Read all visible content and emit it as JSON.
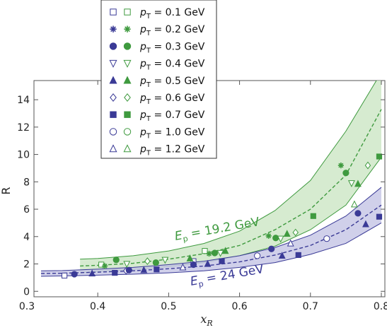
{
  "chart_data": {
    "type": "scatter",
    "xlabel": "x_R",
    "ylabel": "R",
    "xlim": [
      0.31,
      0.805
    ],
    "ylim": [
      -0.4,
      15.4
    ],
    "x_ticks": [
      0.3,
      0.4,
      0.5,
      0.6,
      0.7,
      0.8
    ],
    "y_ticks": [
      0,
      2,
      4,
      6,
      8,
      10,
      12,
      14
    ],
    "x_tick_labels": [
      "0.3",
      "0.4",
      "0.5",
      "0.6",
      "0.7",
      "0.8"
    ],
    "y_tick_labels": [
      "0",
      "2",
      "4",
      "6",
      "8",
      "10",
      "12",
      "14"
    ],
    "legend": {
      "placement": "top-left, outside plot",
      "entries": [
        {
          "label": "p_T = 0.1 GeV",
          "marker": "square-open"
        },
        {
          "label": "p_T = 0.2 GeV",
          "marker": "star"
        },
        {
          "label": "p_T = 0.3 GeV",
          "marker": "circle-filled"
        },
        {
          "label": "p_T = 0.4 GeV",
          "marker": "triangle-down-open"
        },
        {
          "label": "p_T = 0.5 GeV",
          "marker": "triangle-up-filled"
        },
        {
          "label": "p_T = 0.6 GeV",
          "marker": "diamond-open"
        },
        {
          "label": "p_T = 0.7 GeV",
          "marker": "square-filled"
        },
        {
          "label": "p_T = 1.0 GeV",
          "marker": "circle-open"
        },
        {
          "label": "p_T = 1.2 GeV",
          "marker": "triangle-up-open"
        }
      ]
    },
    "band_labels": {
      "green": {
        "prefix": "E",
        "sub": "p",
        "rest": " = 19.2 GeV",
        "color": "#3f9a3f"
      },
      "blue": {
        "prefix": "E",
        "sub": "p",
        "rest": " = 24 GeV",
        "color": "#3a3a96"
      }
    },
    "colors": {
      "green": "#3f9a3f",
      "green_band": "#cfe8c8",
      "blue": "#3a3a96",
      "blue_band": "#c8c8e6"
    },
    "bands": [
      {
        "color": "green",
        "x": [
          0.375,
          0.4,
          0.45,
          0.5,
          0.55,
          0.6,
          0.65,
          0.7,
          0.75,
          0.8
        ],
        "center": [
          1.85,
          1.9,
          2.05,
          2.35,
          2.75,
          3.35,
          4.5,
          6.0,
          8.5,
          13.3
        ],
        "lower": [
          1.35,
          1.45,
          1.6,
          1.8,
          2.1,
          2.6,
          3.3,
          4.5,
          6.3,
          9.8
        ],
        "upper": [
          2.35,
          2.4,
          2.6,
          2.95,
          3.5,
          4.4,
          5.9,
          8.1,
          11.7,
          16.0
        ]
      },
      {
        "color": "blue",
        "x": [
          0.32,
          0.35,
          0.4,
          0.45,
          0.5,
          0.55,
          0.6,
          0.65,
          0.7,
          0.75,
          0.8
        ],
        "center": [
          1.3,
          1.32,
          1.4,
          1.5,
          1.65,
          1.85,
          2.15,
          2.65,
          3.35,
          4.5,
          6.3
        ],
        "lower": [
          1.1,
          1.12,
          1.18,
          1.25,
          1.35,
          1.5,
          1.75,
          2.1,
          2.7,
          3.5,
          5.0
        ],
        "upper": [
          1.5,
          1.52,
          1.62,
          1.75,
          1.95,
          2.2,
          2.6,
          3.2,
          4.1,
          5.5,
          7.6
        ]
      }
    ],
    "points": [
      {
        "color": "blue",
        "marker": "square-open",
        "x": 0.353,
        "y": 1.15
      },
      {
        "color": "blue",
        "marker": "circle-filled",
        "x": 0.367,
        "y": 1.25
      },
      {
        "color": "blue",
        "marker": "triangle-up-filled",
        "x": 0.392,
        "y": 1.3
      },
      {
        "color": "blue",
        "marker": "square-filled",
        "x": 0.424,
        "y": 1.35
      },
      {
        "color": "blue",
        "marker": "diamond-open",
        "x": 0.44,
        "y": 1.5
      },
      {
        "color": "blue",
        "marker": "circle-filled",
        "x": 0.444,
        "y": 1.55
      },
      {
        "color": "blue",
        "marker": "triangle-up-filled",
        "x": 0.465,
        "y": 1.55
      },
      {
        "color": "blue",
        "marker": "square-filled",
        "x": 0.483,
        "y": 1.6
      },
      {
        "color": "blue",
        "marker": "triangle-up-open",
        "x": 0.52,
        "y": 1.75
      },
      {
        "color": "blue",
        "marker": "square-open",
        "x": 0.535,
        "y": 2.2
      },
      {
        "color": "blue",
        "marker": "circle-filled",
        "x": 0.535,
        "y": 1.95
      },
      {
        "color": "blue",
        "marker": "triangle-up-filled",
        "x": 0.555,
        "y": 2.0
      },
      {
        "color": "blue",
        "marker": "square-filled",
        "x": 0.575,
        "y": 2.2
      },
      {
        "color": "blue",
        "marker": "circle-open",
        "x": 0.625,
        "y": 2.6
      },
      {
        "color": "blue",
        "marker": "circle-filled",
        "x": 0.645,
        "y": 3.1
      },
      {
        "color": "blue",
        "marker": "triangle-up-filled",
        "x": 0.66,
        "y": 2.6
      },
      {
        "color": "blue",
        "marker": "triangle-up-open",
        "x": 0.672,
        "y": 3.5
      },
      {
        "color": "blue",
        "marker": "square-filled",
        "x": 0.683,
        "y": 2.65
      },
      {
        "color": "blue",
        "marker": "circle-open",
        "x": 0.723,
        "y": 3.85
      },
      {
        "color": "blue",
        "marker": "circle-filled",
        "x": 0.767,
        "y": 5.7
      },
      {
        "color": "blue",
        "marker": "triangle-up-filled",
        "x": 0.778,
        "y": 4.9
      },
      {
        "color": "blue",
        "marker": "square-filled",
        "x": 0.797,
        "y": 5.45
      },
      {
        "color": "green",
        "marker": "square-open",
        "x": 0.405,
        "y": 1.95
      },
      {
        "color": "green",
        "marker": "star",
        "x": 0.41,
        "y": 1.85
      },
      {
        "color": "green",
        "marker": "circle-filled",
        "x": 0.426,
        "y": 2.3
      },
      {
        "color": "green",
        "marker": "triangle-down-open",
        "x": 0.441,
        "y": 2.0
      },
      {
        "color": "green",
        "marker": "diamond-open",
        "x": 0.47,
        "y": 2.2
      },
      {
        "color": "green",
        "marker": "circle-filled",
        "x": 0.482,
        "y": 2.1
      },
      {
        "color": "green",
        "marker": "triangle-down-open",
        "x": 0.495,
        "y": 2.3
      },
      {
        "color": "green",
        "marker": "triangle-up-filled",
        "x": 0.53,
        "y": 2.4
      },
      {
        "color": "green",
        "marker": "square-open",
        "x": 0.551,
        "y": 2.95
      },
      {
        "color": "green",
        "marker": "star",
        "x": 0.557,
        "y": 2.75
      },
      {
        "color": "green",
        "marker": "circle-filled",
        "x": 0.565,
        "y": 2.8
      },
      {
        "color": "green",
        "marker": "triangle-down-open",
        "x": 0.573,
        "y": 2.8
      },
      {
        "color": "green",
        "marker": "triangle-up-filled",
        "x": 0.58,
        "y": 2.95
      },
      {
        "color": "green",
        "marker": "star",
        "x": 0.641,
        "y": 4.05
      },
      {
        "color": "green",
        "marker": "circle-filled",
        "x": 0.651,
        "y": 3.9
      },
      {
        "color": "green",
        "marker": "triangle-down-open",
        "x": 0.658,
        "y": 3.85
      },
      {
        "color": "green",
        "marker": "triangle-up-filled",
        "x": 0.667,
        "y": 4.2
      },
      {
        "color": "green",
        "marker": "diamond-open",
        "x": 0.679,
        "y": 4.3
      },
      {
        "color": "green",
        "marker": "square-filled",
        "x": 0.704,
        "y": 5.5
      },
      {
        "color": "green",
        "marker": "star",
        "x": 0.743,
        "y": 9.2
      },
      {
        "color": "green",
        "marker": "circle-filled",
        "x": 0.75,
        "y": 8.65
      },
      {
        "color": "green",
        "marker": "triangle-down-open",
        "x": 0.758,
        "y": 7.9
      },
      {
        "color": "green",
        "marker": "triangle-up-open",
        "x": 0.762,
        "y": 6.35
      },
      {
        "color": "green",
        "marker": "triangle-up-filled",
        "x": 0.767,
        "y": 7.85
      },
      {
        "color": "green",
        "marker": "diamond-open",
        "x": 0.781,
        "y": 9.2
      },
      {
        "color": "green",
        "marker": "square-filled",
        "x": 0.797,
        "y": 9.85
      }
    ]
  }
}
